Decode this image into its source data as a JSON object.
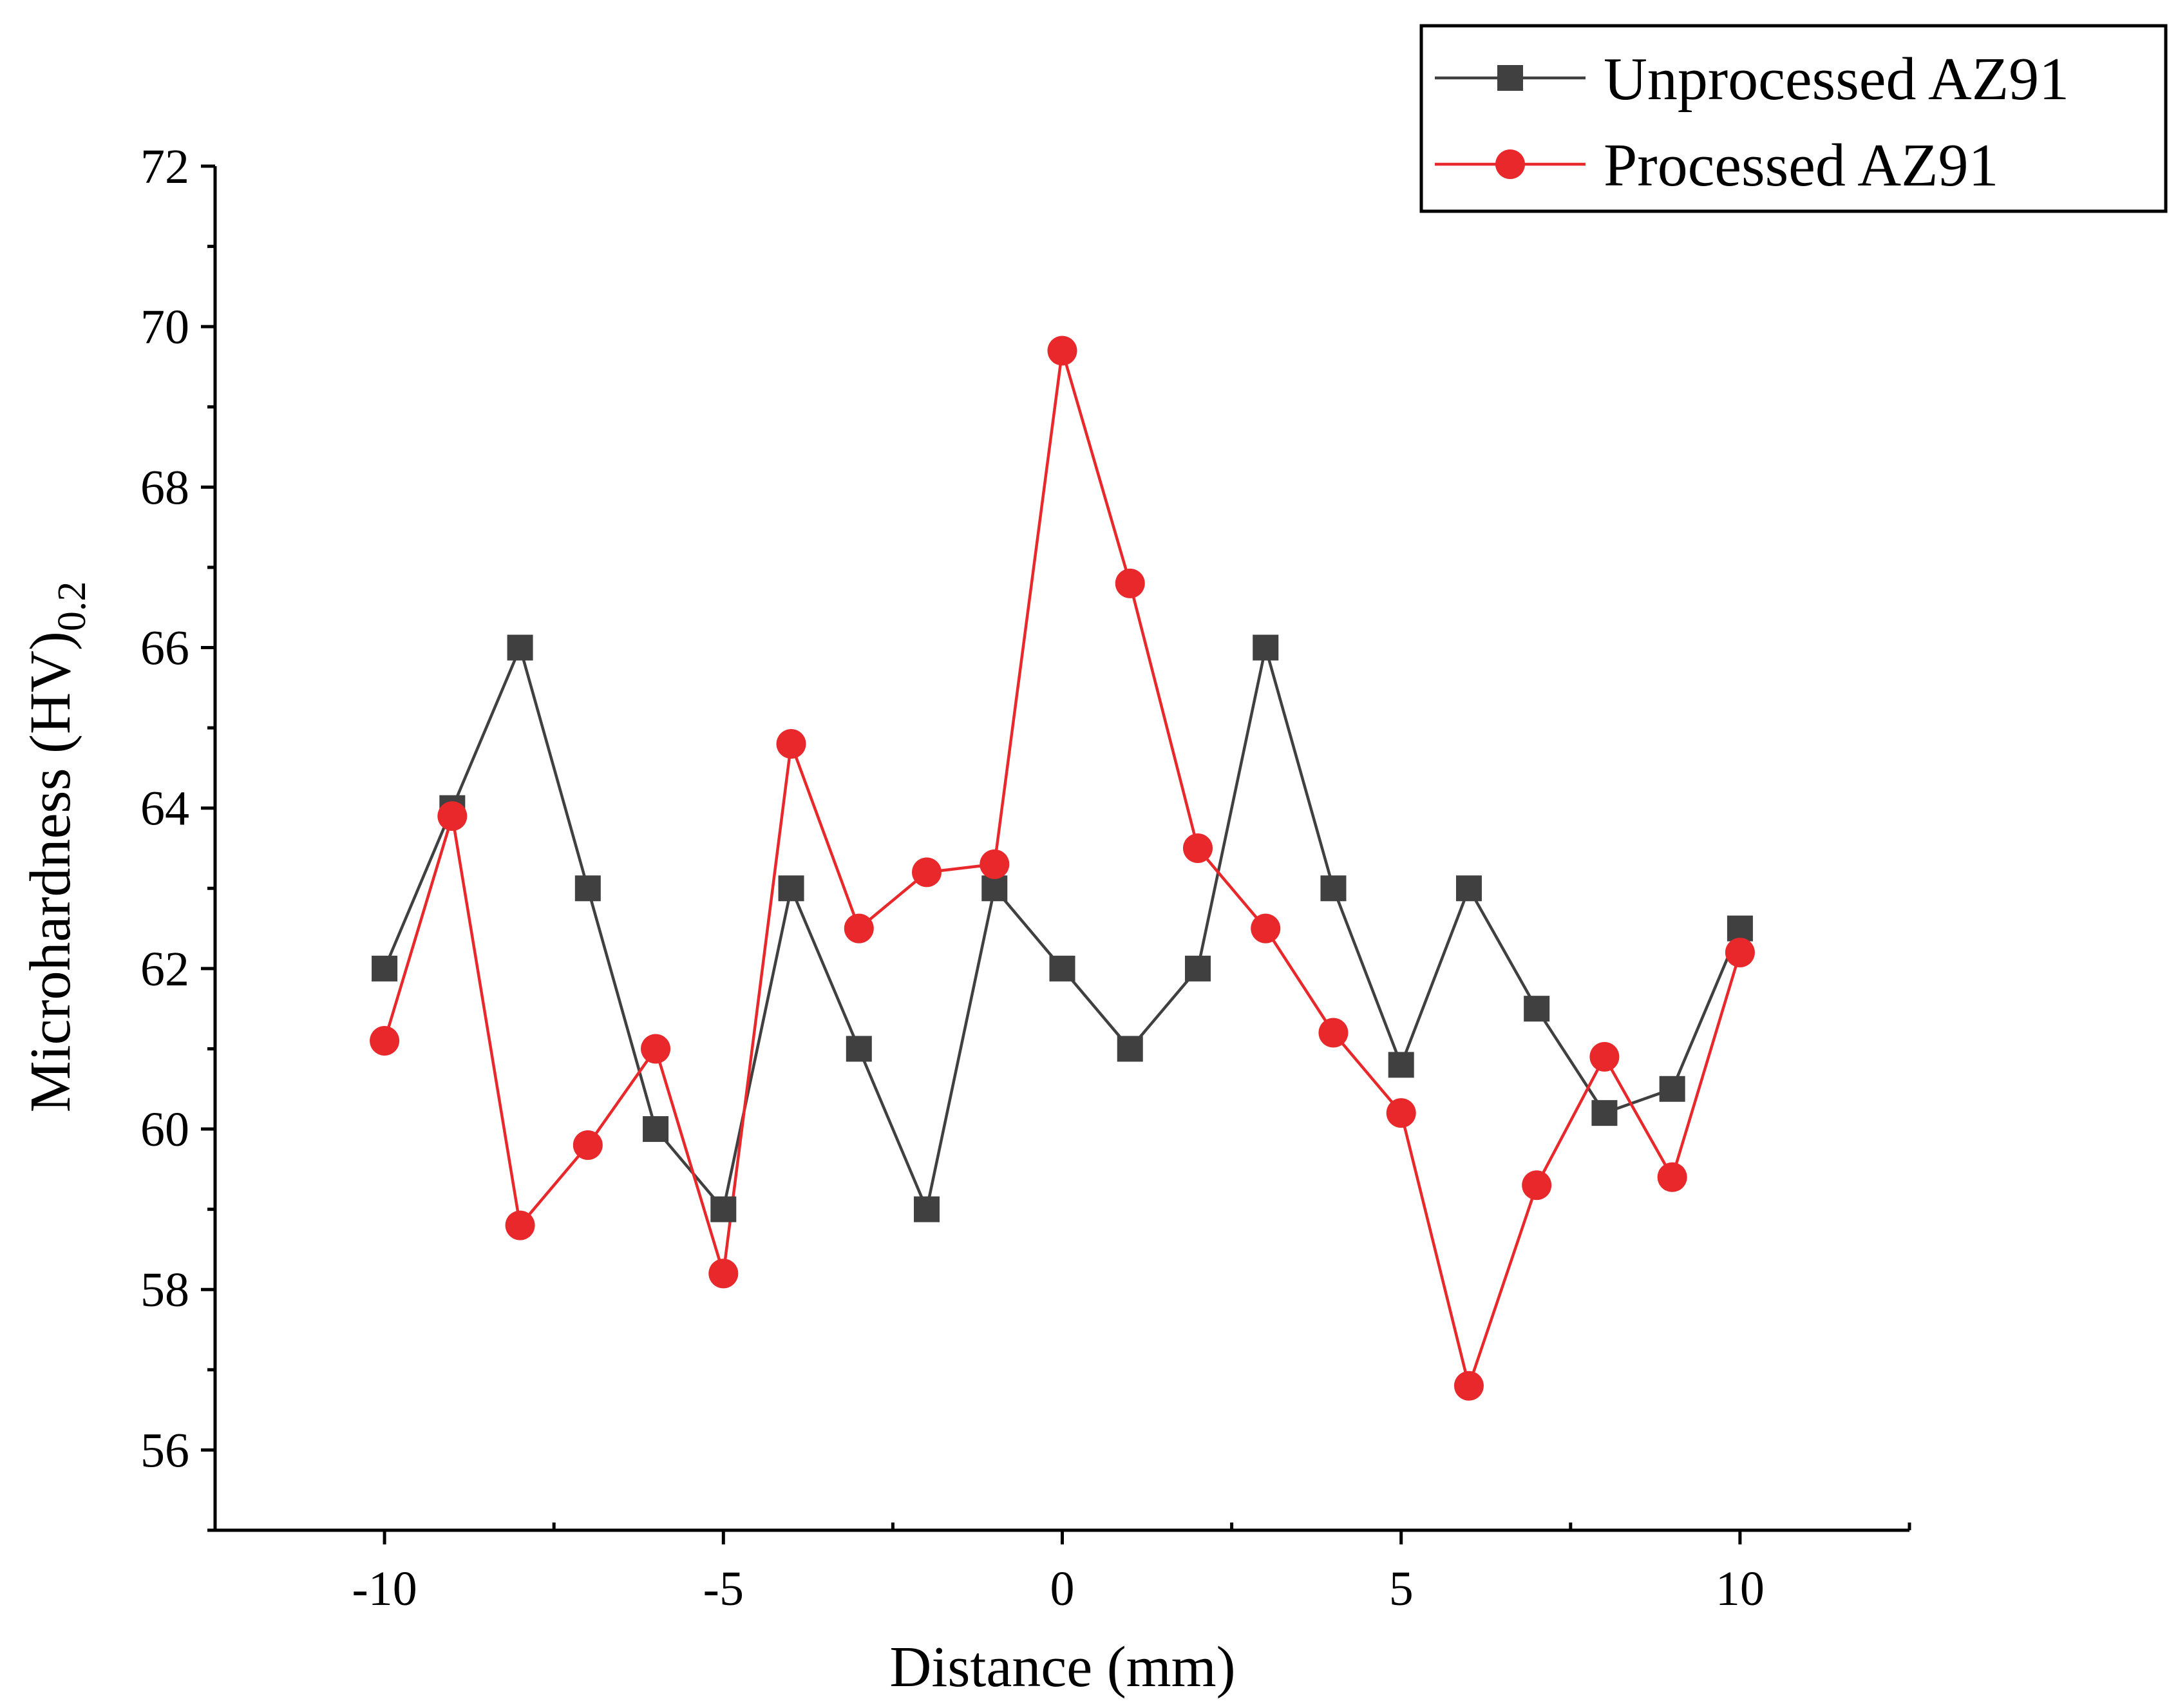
{
  "chart_data": {
    "type": "line",
    "title": "",
    "xlabel": "Distance (mm)",
    "ylabel_main": "Microhardness (HV)",
    "ylabel_sub": "0.2",
    "xlim": [
      -12.5,
      12.5
    ],
    "ylim": [
      55,
      72
    ],
    "x_ticks": [
      -10,
      -5,
      0,
      5,
      10
    ],
    "x_tick_labels": [
      "-10",
      "-5",
      "0",
      "5",
      "10"
    ],
    "y_ticks": [
      56,
      58,
      60,
      62,
      64,
      66,
      68,
      70,
      72
    ],
    "y_tick_labels": [
      "56",
      "58",
      "60",
      "62",
      "64",
      "66",
      "68",
      "70",
      "72"
    ],
    "x": [
      -10,
      -9,
      -8,
      -7,
      -6,
      -5,
      -4,
      -3,
      -2,
      -1,
      0,
      1,
      2,
      3,
      4,
      5,
      6,
      7,
      8,
      9,
      10
    ],
    "series": [
      {
        "name": "Unprocessed AZ91",
        "color": "#404040",
        "marker": "square",
        "values": [
          62.0,
          64.0,
          66.0,
          63.0,
          60.0,
          59.0,
          63.0,
          61.0,
          59.0,
          63.0,
          62.0,
          61.0,
          62.0,
          66.0,
          63.0,
          60.8,
          63.0,
          61.5,
          60.2,
          60.5,
          62.5
        ]
      },
      {
        "name": "Processed AZ91",
        "color": "#e8282b",
        "marker": "circle",
        "values": [
          61.1,
          63.9,
          58.8,
          59.8,
          61.0,
          58.2,
          64.8,
          62.5,
          63.2,
          63.3,
          69.7,
          66.8,
          63.5,
          62.5,
          61.2,
          60.2,
          56.8,
          59.3,
          60.9,
          59.4,
          62.2
        ]
      }
    ],
    "legend_position": "top-right",
    "grid": false
  }
}
